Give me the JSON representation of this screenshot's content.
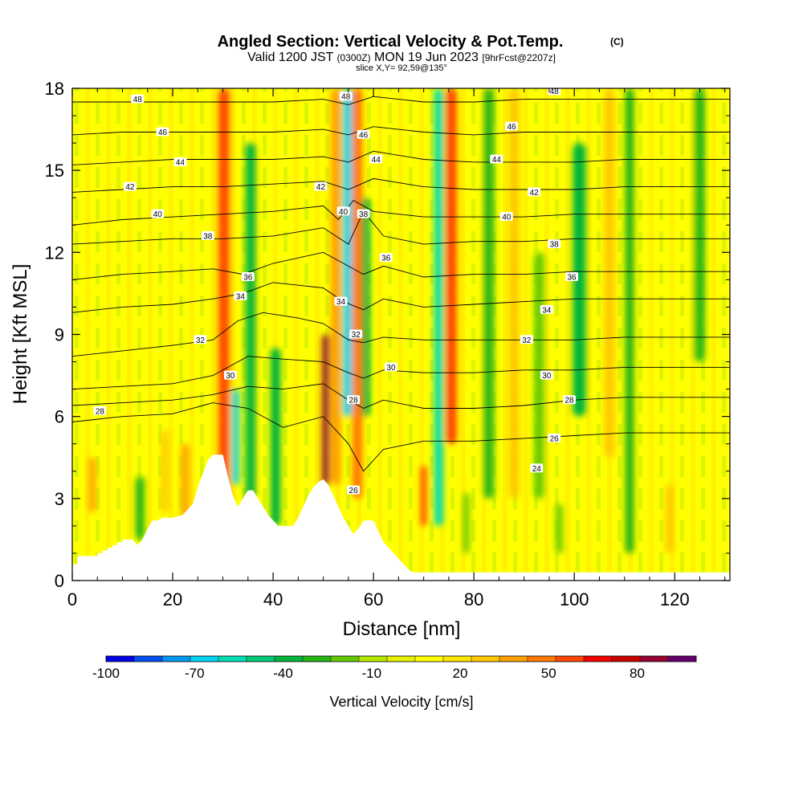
{
  "chart_data": {
    "type": "heatmap",
    "title": "Angled Section: Vertical Velocity & Pot.Temp.",
    "title_mark": "(C)",
    "subtitle_main": "Valid 1200 JST",
    "subtitle_utc": "(0300Z)",
    "subtitle_date": "MON 19 Jun 2023",
    "subtitle_fcst": "[9hrFcst@2207z]",
    "slice_label": "slice X,Y= 92,59@135°",
    "xlabel": "Distance [nm]",
    "ylabel": "Height [Kft MSL]",
    "xlim": [
      0,
      131
    ],
    "ylim": [
      0,
      18
    ],
    "x_ticks": [
      0,
      20,
      40,
      60,
      80,
      100,
      120
    ],
    "y_ticks": [
      0,
      3,
      6,
      9,
      12,
      15,
      18
    ],
    "colorbar": {
      "label": "Vertical Velocity [cm/s]",
      "range": [
        -100,
        100
      ],
      "tick_labels": [
        -100,
        -70,
        -40,
        -10,
        20,
        50,
        80
      ],
      "colors": [
        "#0000e6",
        "#0050f0",
        "#0096f0",
        "#00d2f0",
        "#00dcb4",
        "#00c878",
        "#00b43c",
        "#28b414",
        "#64c800",
        "#b4e600",
        "#e6f000",
        "#ffff00",
        "#ffe600",
        "#ffc800",
        "#ffa000",
        "#ff7800",
        "#ff4600",
        "#f00000",
        "#c80000",
        "#960032",
        "#64006e"
      ]
    },
    "grid": false,
    "terrain_profile": {
      "x": [
        0,
        1,
        1,
        5,
        5,
        6,
        6,
        7,
        7,
        8,
        8,
        9,
        9,
        10,
        10,
        12,
        13,
        14,
        15,
        16,
        17,
        18,
        19,
        20,
        22,
        24,
        25,
        26,
        27,
        28,
        29,
        30,
        31,
        32,
        33,
        34,
        35,
        36,
        37,
        38,
        39,
        40,
        41,
        42,
        43,
        44,
        45,
        46,
        47,
        48,
        49,
        50,
        51,
        52,
        53,
        54,
        55,
        56,
        57,
        58,
        59,
        60,
        61,
        62,
        63,
        64,
        65,
        66,
        67,
        68,
        69,
        70,
        71,
        72,
        131
      ],
      "height": [
        0.6,
        0.6,
        0.9,
        0.9,
        1.0,
        1.0,
        1.1,
        1.1,
        1.2,
        1.2,
        1.3,
        1.3,
        1.4,
        1.4,
        1.5,
        1.5,
        1.3,
        1.5,
        1.9,
        2.2,
        2.2,
        2.3,
        2.3,
        2.3,
        2.4,
        2.8,
        3.4,
        3.9,
        4.4,
        4.6,
        4.6,
        4.6,
        3.8,
        3.1,
        2.7,
        3.0,
        3.3,
        3.3,
        3.0,
        2.7,
        2.4,
        2.2,
        2.0,
        2.0,
        2.0,
        2.0,
        2.3,
        2.7,
        3.1,
        3.4,
        3.6,
        3.7,
        3.5,
        3.1,
        2.7,
        2.3,
        2.0,
        1.7,
        1.9,
        2.2,
        2.2,
        2.2,
        1.8,
        1.4,
        1.2,
        1.0,
        0.8,
        0.6,
        0.4,
        0.3,
        0.3,
        0.3,
        0.3,
        0.3,
        0.3
      ]
    },
    "velocity_bands": [
      {
        "x": 30.2,
        "y_from": 2.5,
        "y_to": 18,
        "width": 2.2,
        "value": 60
      },
      {
        "x": 32.5,
        "y_from": 3.5,
        "y_to": 7.0,
        "width": 1.4,
        "value": -70
      },
      {
        "x": 35.5,
        "y_from": 3.0,
        "y_to": 16,
        "width": 2.0,
        "value": -40
      },
      {
        "x": 40.5,
        "y_from": 2.0,
        "y_to": 8.5,
        "width": 2.0,
        "value": -40
      },
      {
        "x": 50.5,
        "y_from": 3.5,
        "y_to": 9.0,
        "width": 1.4,
        "value": 90
      },
      {
        "x": 52.5,
        "y_from": 3.5,
        "y_to": 18,
        "width": 2.0,
        "value": 40
      },
      {
        "x": 54.8,
        "y_from": 6.0,
        "y_to": 18,
        "width": 1.8,
        "value": -70
      },
      {
        "x": 56.8,
        "y_from": 3.0,
        "y_to": 18,
        "width": 2.0,
        "value": 50
      },
      {
        "x": 58.5,
        "y_from": 6.0,
        "y_to": 14,
        "width": 1.6,
        "value": -40
      },
      {
        "x": 70.0,
        "y_from": 2.0,
        "y_to": 4.2,
        "width": 1.2,
        "value": 60
      },
      {
        "x": 73.0,
        "y_from": 2.0,
        "y_to": 18,
        "width": 1.8,
        "value": -55
      },
      {
        "x": 75.5,
        "y_from": 5.0,
        "y_to": 18,
        "width": 2.2,
        "value": 55
      },
      {
        "x": 83.0,
        "y_from": 3.0,
        "y_to": 18,
        "width": 2.0,
        "value": -30
      },
      {
        "x": 88.0,
        "y_from": 3.0,
        "y_to": 18,
        "width": 2.0,
        "value": 30
      },
      {
        "x": 93.0,
        "y_from": 3.0,
        "y_to": 12,
        "width": 2.0,
        "value": -20
      },
      {
        "x": 101.0,
        "y_from": 6.0,
        "y_to": 16,
        "width": 2.6,
        "value": -35
      },
      {
        "x": 107.0,
        "y_from": 4.5,
        "y_to": 18,
        "width": 2.0,
        "value": 25
      },
      {
        "x": 111.0,
        "y_from": 1.0,
        "y_to": 18,
        "width": 1.8,
        "value": -30
      },
      {
        "x": 13.5,
        "y_from": 1.5,
        "y_to": 3.8,
        "width": 1.8,
        "value": -30
      },
      {
        "x": 18.5,
        "y_from": 2.5,
        "y_to": 5.5,
        "width": 1.4,
        "value": 30
      },
      {
        "x": 22.5,
        "y_from": 2.2,
        "y_to": 5.0,
        "width": 1.6,
        "value": 35
      },
      {
        "x": 4.0,
        "y_from": 2.5,
        "y_to": 4.5,
        "width": 1.4,
        "value": 35
      },
      {
        "x": 78.5,
        "y_from": 1.0,
        "y_to": 3.2,
        "width": 1.2,
        "value": -20
      },
      {
        "x": 125.0,
        "y_from": 8.0,
        "y_to": 18,
        "width": 2.0,
        "value": -25
      },
      {
        "x": 119.0,
        "y_from": 1.0,
        "y_to": 3.5,
        "width": 1.6,
        "value": 30
      },
      {
        "x": 97.0,
        "y_from": 1.0,
        "y_to": 2.8,
        "width": 1.4,
        "value": -20
      }
    ],
    "isentropes": [
      {
        "value": 26,
        "x": [
          0,
          10,
          20,
          28,
          35,
          42,
          50,
          55,
          58,
          62,
          70,
          80,
          90,
          100,
          110,
          120,
          131
        ],
        "y": [
          5.8,
          6.0,
          6.1,
          6.5,
          6.3,
          5.6,
          6.0,
          5.0,
          4.0,
          4.8,
          5.1,
          5.1,
          5.2,
          5.3,
          5.4,
          5.4,
          5.4
        ]
      },
      {
        "value": 28,
        "x": [
          0,
          10,
          20,
          28,
          35,
          42,
          50,
          55,
          58,
          62,
          70,
          80,
          90,
          100,
          110,
          120,
          131
        ],
        "y": [
          6.4,
          6.5,
          6.6,
          6.8,
          7.1,
          7.0,
          7.2,
          6.6,
          6.3,
          6.6,
          6.3,
          6.3,
          6.4,
          6.6,
          6.7,
          6.7,
          6.7
        ]
      },
      {
        "value": 30,
        "x": [
          0,
          10,
          20,
          28,
          31,
          35,
          42,
          50,
          55,
          58,
          62,
          70,
          80,
          90,
          100,
          110,
          120,
          131
        ],
        "y": [
          7.0,
          7.1,
          7.2,
          7.5,
          7.8,
          8.2,
          8.1,
          8.0,
          7.6,
          7.4,
          7.7,
          7.6,
          7.6,
          7.7,
          7.7,
          7.8,
          7.8,
          7.8
        ]
      },
      {
        "value": 32,
        "x": [
          0,
          10,
          20,
          28,
          33,
          38,
          45,
          50,
          55,
          58,
          62,
          70,
          80,
          90,
          100,
          110,
          120,
          131
        ],
        "y": [
          8.2,
          8.4,
          8.6,
          8.8,
          9.5,
          9.8,
          9.6,
          9.4,
          8.8,
          8.7,
          8.9,
          8.8,
          8.8,
          8.8,
          8.8,
          8.9,
          8.9,
          8.9
        ]
      },
      {
        "value": 34,
        "x": [
          0,
          10,
          20,
          28,
          34,
          40,
          50,
          54,
          58,
          62,
          70,
          80,
          90,
          100,
          110,
          120,
          131
        ],
        "y": [
          9.8,
          10.0,
          10.1,
          10.3,
          10.5,
          10.9,
          10.7,
          10.2,
          9.9,
          10.3,
          10.0,
          10.1,
          10.2,
          10.3,
          10.3,
          10.3,
          10.3
        ]
      },
      {
        "value": 36,
        "x": [
          0,
          10,
          20,
          28,
          34,
          40,
          50,
          55,
          58,
          62,
          70,
          80,
          90,
          100,
          110,
          120,
          131
        ],
        "y": [
          11.0,
          11.2,
          11.3,
          11.4,
          11.2,
          11.6,
          12.0,
          11.5,
          11.2,
          11.5,
          11.1,
          11.2,
          11.2,
          11.3,
          11.3,
          11.3,
          11.3
        ]
      },
      {
        "value": 38,
        "x": [
          0,
          10,
          20,
          30,
          40,
          50,
          55,
          58,
          62,
          70,
          80,
          90,
          100,
          110,
          120,
          131
        ],
        "y": [
          12.3,
          12.4,
          12.5,
          12.5,
          12.6,
          12.9,
          12.3,
          13.5,
          12.6,
          12.3,
          12.4,
          12.4,
          12.5,
          12.5,
          12.5,
          12.5
        ]
      },
      {
        "value": 40,
        "x": [
          0,
          10,
          20,
          30,
          40,
          50,
          53,
          56,
          60,
          70,
          80,
          90,
          100,
          110,
          120,
          131
        ],
        "y": [
          13.0,
          13.2,
          13.3,
          13.4,
          13.5,
          13.7,
          13.2,
          13.9,
          13.5,
          13.3,
          13.3,
          13.3,
          13.4,
          13.4,
          13.4,
          13.4
        ]
      },
      {
        "value": 42,
        "x": [
          0,
          10,
          20,
          30,
          40,
          50,
          55,
          60,
          70,
          80,
          90,
          100,
          110,
          120,
          131
        ],
        "y": [
          14.2,
          14.3,
          14.4,
          14.4,
          14.5,
          14.6,
          14.3,
          14.7,
          14.4,
          14.3,
          14.3,
          14.3,
          14.4,
          14.4,
          14.4
        ]
      },
      {
        "value": 44,
        "x": [
          0,
          10,
          20,
          30,
          40,
          50,
          55,
          60,
          70,
          80,
          90,
          100,
          110,
          120,
          131
        ],
        "y": [
          15.2,
          15.3,
          15.4,
          15.4,
          15.4,
          15.5,
          15.3,
          15.7,
          15.4,
          15.3,
          15.3,
          15.3,
          15.4,
          15.4,
          15.4
        ]
      },
      {
        "value": 46,
        "x": [
          0,
          10,
          20,
          30,
          40,
          50,
          55,
          60,
          70,
          80,
          90,
          100,
          110,
          120,
          131
        ],
        "y": [
          16.3,
          16.4,
          16.4,
          16.4,
          16.4,
          16.5,
          16.3,
          16.6,
          16.4,
          16.3,
          16.4,
          16.4,
          16.4,
          16.4,
          16.4
        ]
      },
      {
        "value": 48,
        "x": [
          0,
          10,
          20,
          30,
          40,
          50,
          55,
          60,
          70,
          80,
          90,
          100,
          110,
          120,
          131
        ],
        "y": [
          17.5,
          17.5,
          17.5,
          17.5,
          17.5,
          17.6,
          17.4,
          17.7,
          17.5,
          17.5,
          17.6,
          17.6,
          17.6,
          17.6,
          17.6
        ]
      }
    ],
    "contour_labels": [
      {
        "text": "48",
        "x": 13,
        "y": 17.6
      },
      {
        "text": "48",
        "x": 54.5,
        "y": 17.7
      },
      {
        "text": "48",
        "x": 96,
        "y": 17.9
      },
      {
        "text": "46",
        "x": 18,
        "y": 16.4
      },
      {
        "text": "46",
        "x": 58,
        "y": 16.3
      },
      {
        "text": "46",
        "x": 87.5,
        "y": 16.6
      },
      {
        "text": "44",
        "x": 21.5,
        "y": 15.3
      },
      {
        "text": "44",
        "x": 60.5,
        "y": 15.4
      },
      {
        "text": "44",
        "x": 84.5,
        "y": 15.4
      },
      {
        "text": "42",
        "x": 11.5,
        "y": 14.4
      },
      {
        "text": "42",
        "x": 49.5,
        "y": 14.4
      },
      {
        "text": "42",
        "x": 92,
        "y": 14.2
      },
      {
        "text": "40",
        "x": 17,
        "y": 13.4
      },
      {
        "text": "40",
        "x": 54,
        "y": 13.5
      },
      {
        "text": "40",
        "x": 86.5,
        "y": 13.3
      },
      {
        "text": "38",
        "x": 27,
        "y": 12.6
      },
      {
        "text": "38",
        "x": 58,
        "y": 13.4
      },
      {
        "text": "38",
        "x": 96,
        "y": 12.3
      },
      {
        "text": "36",
        "x": 35,
        "y": 11.1
      },
      {
        "text": "36",
        "x": 62.5,
        "y": 11.8
      },
      {
        "text": "36",
        "x": 99.5,
        "y": 11.1
      },
      {
        "text": "34",
        "x": 33.5,
        "y": 10.4
      },
      {
        "text": "34",
        "x": 53.5,
        "y": 10.2
      },
      {
        "text": "34",
        "x": 94.5,
        "y": 9.9
      },
      {
        "text": "32",
        "x": 25.5,
        "y": 8.8
      },
      {
        "text": "32",
        "x": 56.5,
        "y": 9.0
      },
      {
        "text": "32",
        "x": 90.5,
        "y": 8.8
      },
      {
        "text": "30",
        "x": 31.5,
        "y": 7.5
      },
      {
        "text": "30",
        "x": 63.5,
        "y": 7.8
      },
      {
        "text": "30",
        "x": 94.5,
        "y": 7.5
      },
      {
        "text": "28",
        "x": 5.5,
        "y": 6.2
      },
      {
        "text": "28",
        "x": 56,
        "y": 6.6
      },
      {
        "text": "28",
        "x": 99,
        "y": 6.6
      },
      {
        "text": "26",
        "x": 56,
        "y": 3.3
      },
      {
        "text": "26",
        "x": 96,
        "y": 5.2
      },
      {
        "text": "24",
        "x": 92.5,
        "y": 4.1
      }
    ]
  }
}
